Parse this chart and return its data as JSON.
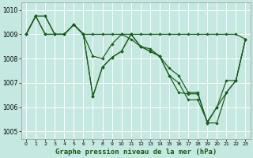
{
  "xlabel": "Graphe pression niveau de la mer (hPa)",
  "xlim": [
    -0.5,
    23.5
  ],
  "ylim": [
    1004.7,
    1010.3
  ],
  "yticks": [
    1005,
    1006,
    1007,
    1008,
    1009,
    1010
  ],
  "xticks": [
    0,
    1,
    2,
    3,
    4,
    5,
    6,
    7,
    8,
    9,
    10,
    11,
    12,
    13,
    14,
    15,
    16,
    17,
    18,
    19,
    20,
    21,
    22,
    23
  ],
  "bg_color": "#c5e8e0",
  "grid_color": "#ffffff",
  "line_color": "#1a5c1a",
  "series": [
    {
      "x": [
        0,
        1,
        2,
        3,
        4,
        5,
        6,
        7,
        8,
        9,
        10,
        11,
        12,
        13,
        14,
        15,
        16,
        17,
        18,
        19,
        20,
        21,
        22,
        23
      ],
      "y": [
        1009.0,
        1009.75,
        1009.75,
        1009.0,
        1009.0,
        1009.4,
        1009.0,
        1009.0,
        1009.0,
        1009.0,
        1009.0,
        1009.0,
        1009.0,
        1009.0,
        1009.0,
        1009.0,
        1009.0,
        1009.0,
        1009.0,
        1009.0,
        1009.0,
        1009.0,
        1009.0,
        1008.8
      ]
    },
    {
      "x": [
        0,
        1,
        2,
        3,
        4,
        5,
        6,
        7,
        8,
        9,
        10,
        11,
        12,
        13,
        14,
        15,
        16,
        17,
        18,
        19,
        20,
        21,
        22,
        23
      ],
      "y": [
        1009.0,
        1009.75,
        1009.75,
        1009.0,
        1009.0,
        1009.4,
        1009.0,
        1008.1,
        1008.0,
        1008.6,
        1009.0,
        1008.8,
        1008.5,
        1008.4,
        1008.1,
        1007.6,
        1007.3,
        1006.6,
        1006.6,
        1005.35,
        1006.0,
        1006.6,
        1007.1,
        1008.8
      ]
    },
    {
      "x": [
        0,
        1,
        2,
        3,
        4,
        5,
        6,
        7,
        8,
        9,
        10,
        11,
        12,
        13,
        14,
        15,
        16,
        17,
        18,
        19,
        20,
        21,
        22,
        23
      ],
      "y": [
        1009.0,
        1009.75,
        1009.0,
        1009.0,
        1009.0,
        1009.4,
        1009.0,
        1006.45,
        1007.65,
        1008.05,
        1008.3,
        1009.0,
        1008.5,
        1008.3,
        1008.1,
        1007.3,
        1007.0,
        1006.3,
        1006.3,
        1005.4,
        1006.0,
        1007.1,
        1007.1,
        1008.8
      ]
    },
    {
      "x": [
        0,
        1,
        2,
        3,
        4,
        5,
        6,
        7,
        8,
        9,
        10,
        11,
        12,
        13,
        14,
        15,
        16,
        17,
        18,
        19,
        20,
        21,
        22,
        23
      ],
      "y": [
        1009.0,
        1009.75,
        1009.0,
        1009.0,
        1009.0,
        1009.4,
        1009.0,
        1006.45,
        1007.65,
        1008.05,
        1008.3,
        1009.0,
        1008.5,
        1008.3,
        1008.1,
        1007.3,
        1006.6,
        1006.55,
        1006.55,
        1005.35,
        1005.35,
        1006.6,
        1007.1,
        1008.8
      ]
    }
  ],
  "marker": "D",
  "markersize": 1.8,
  "linewidth": 0.85,
  "label_fontsize": 6.5,
  "tick_fontsize": 5.5
}
